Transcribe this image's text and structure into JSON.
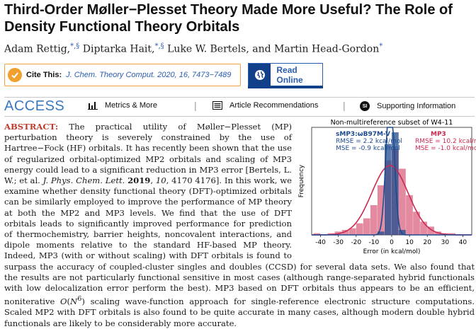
{
  "title": "Third-Order Møller−Plesset Theory Made More Useful? The Role of Density Functional Theory Orbitals",
  "authors": [
    {
      "name": "Adam Rettig,",
      "sup": "*,§"
    },
    {
      "name": "Diptarka Hait,",
      "sup": "*,§"
    },
    {
      "name": "Luke W. Bertels,",
      "sup": ""
    },
    {
      "name": "and Martin Head-Gordon",
      "sup": "*"
    }
  ],
  "cite": {
    "label": "Cite This:",
    "journal": "J. Chem. Theory Comput.",
    "ref": "2020, 16, 7473−7489"
  },
  "read_online": "Read Online",
  "access": {
    "label": "ACCESS",
    "sep": "|",
    "metrics": "Metrics & More",
    "recommendations": "Article Recommendations",
    "supporting": "Supporting Information",
    "si_badge": "SI"
  },
  "abstract": {
    "label": "ABSTRACT:",
    "p1": "The practical utility of Møller−Plesset (MP) perturbation theory is severely constrained by the use of Hartree−Fock (HF) orbitals. It has recently been shown that the use of regularized orbital-optimized MP2 orbitals and scaling of MP3 energy could lead to a significant reduction in MP3 error [Bertels, L. W.; et al.",
    "journal": "J. Phys. Chem. Lett.",
    "year": "2019",
    "vol": "10",
    "pages": ", 4170 4176]. In this work, we examine whether density functional theory (DFT)-optimized orbitals can be similarly employed to improve the performance of MP theory at both the MP2 and MP3 levels. We find that the use of DFT orbitals leads to significantly improved performance for prediction of thermochemistry, barrier heights, noncovalent interactions, and dipole moments relative to the standard HF-based MP theory. Indeed, MP3 (with or without scaling) with DFT orbitals is found to surpass the accuracy of coupled-cluster singles and doubles (CCSD) for several data sets. We also found that the results are not particularly functional sensitive in most cases (although range-separated hybrid functionals with low delocalization error perform the best). MP3 based on DFT orbitals thus appears to be an efficient, noniterative",
    "order_o": "O",
    "order_n": "N",
    "order_exp": "6",
    "p2": "scaling wave-function approach for single-reference electronic structure computations. Scaled MP2 with DFT orbitals is also found to be quite accurate in many cases, although modern double hybrid functionals are likely to be considerably more accurate."
  },
  "chart_data": {
    "type": "histogram",
    "title": "Non-multireference subset of W4-11",
    "xlabel": "Error (in kcal/mol)",
    "ylabel": "Frequency",
    "xlim": [
      -45,
      45
    ],
    "xticks": [
      -40,
      -30,
      -20,
      -10,
      0,
      10,
      20,
      30,
      40
    ],
    "bin_edges": [
      -44,
      -40,
      -36,
      -32,
      -28,
      -24,
      -20,
      -16,
      -12,
      -8,
      -4,
      0,
      4,
      8,
      12,
      16,
      20,
      24,
      28,
      32,
      36,
      40
    ],
    "series": [
      {
        "name": "MP3",
        "color": "#cc2952",
        "rmse": "RMSE = 10.2 kcal/mol",
        "mse": "MSE = -1.0 kcal/mol",
        "counts": [
          1,
          0,
          1,
          2,
          3,
          4,
          7,
          10,
          18,
          30,
          45,
          52,
          40,
          24,
          14,
          8,
          5,
          2,
          1,
          1,
          0
        ],
        "fit_mean": -1.0,
        "fit_sd": 10.2
      },
      {
        "name": "sMP3:ωB97M-V",
        "color": "#1e4b8f",
        "rmse": "RMSE = 2.2 kcal/mol",
        "mse": "MSE = -0.9 kcal/mol",
        "counts": [
          0,
          0,
          0,
          0,
          0,
          0,
          0,
          0,
          0,
          2,
          55,
          62,
          3,
          0,
          0,
          0,
          0,
          0,
          0,
          0,
          0
        ],
        "fit_mean": -0.9,
        "fit_sd": 2.2
      }
    ],
    "ymax": 65
  }
}
